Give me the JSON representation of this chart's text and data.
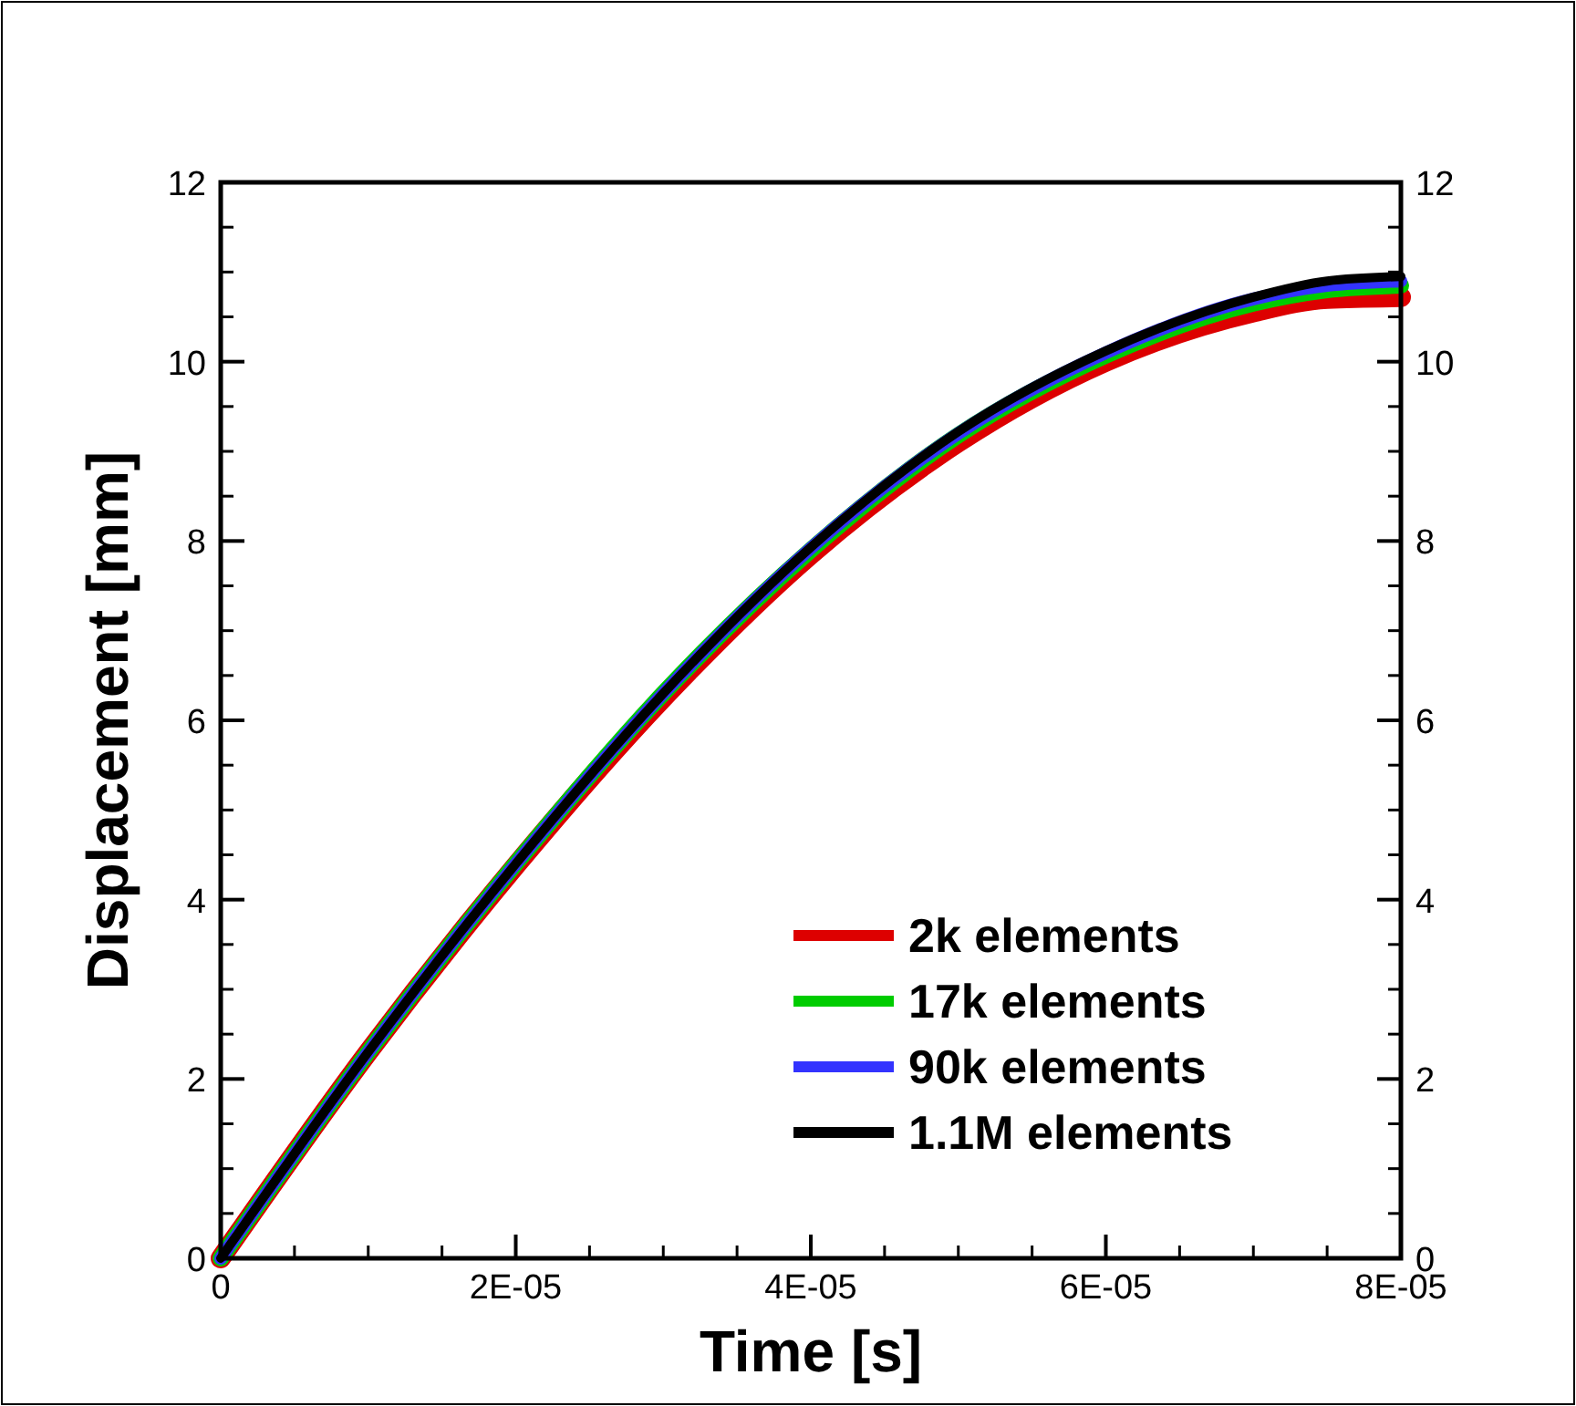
{
  "chart_data": {
    "type": "line",
    "xlabel": "Time [s]",
    "ylabel": "Displacement [mm]",
    "xlim": [
      0,
      8e-05
    ],
    "xticks": [
      0,
      {
        "value": 2e-05,
        "label": "2E-05"
      },
      {
        "value": 4e-05,
        "label": "4E-05"
      },
      {
        "value": 6e-05,
        "label": "6E-05"
      },
      {
        "value": 8e-05,
        "label": "8E-05"
      }
    ],
    "ylim": [
      0,
      12
    ],
    "yticks": [
      0,
      2,
      4,
      6,
      8,
      10,
      12
    ],
    "y2lim": [
      0,
      12
    ],
    "y2ticks": [
      0,
      2,
      4,
      6,
      8,
      10,
      12
    ],
    "x": [
      0,
      1e-05,
      2e-05,
      3e-05,
      4e-05,
      5e-05,
      6e-05,
      7e-05,
      7.5e-05,
      8e-05
    ],
    "series": [
      {
        "name": "2k elements",
        "color": "#dd0000",
        "values": [
          0,
          2.3,
          4.38,
          6.25,
          7.85,
          9.1,
          10.0,
          10.55,
          10.7,
          10.72
        ]
      },
      {
        "name": "17k elements",
        "color": "#00cc00",
        "values": [
          0,
          2.3,
          4.4,
          6.3,
          7.9,
          9.18,
          10.07,
          10.65,
          10.8,
          10.85
        ]
      },
      {
        "name": "90k elements",
        "color": "#3333ff",
        "values": [
          0,
          2.3,
          4.4,
          6.3,
          7.92,
          9.2,
          10.1,
          10.7,
          10.85,
          10.9
        ]
      },
      {
        "name": "1.1M elements",
        "color": "#000000",
        "values": [
          0,
          2.3,
          4.4,
          6.3,
          7.93,
          9.22,
          10.12,
          10.72,
          10.9,
          10.95
        ]
      }
    ],
    "legend": "bottom right",
    "grid": false,
    "marker": "none",
    "line_style": "solid"
  }
}
